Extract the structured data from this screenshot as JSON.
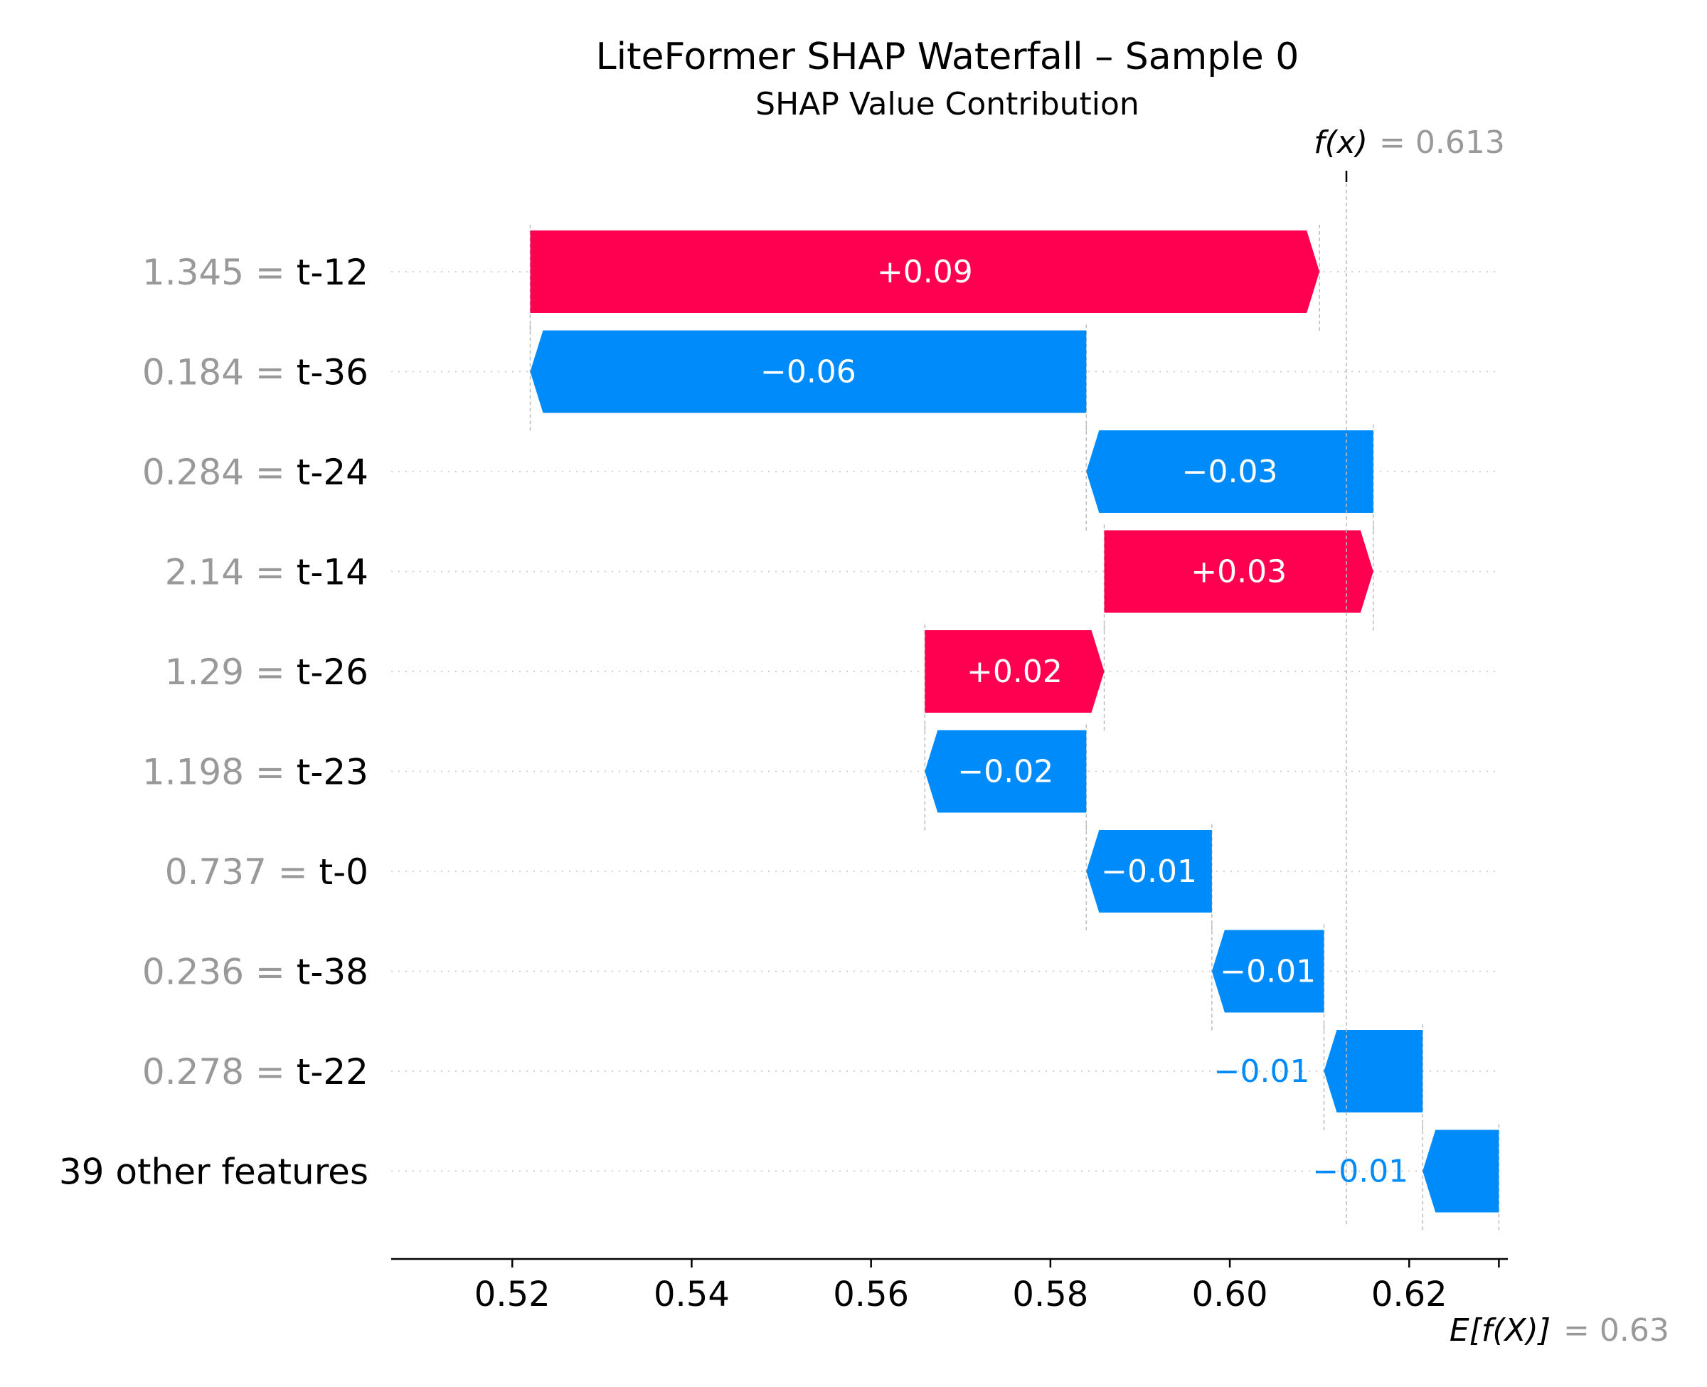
{
  "chart_data": {
    "type": "waterfall",
    "title": "LiteFormer SHAP Waterfall – Sample 0",
    "subtitle": "SHAP Value Contribution",
    "base_value": 0.63,
    "output_value": 0.613,
    "base_label": "E[f(X)]",
    "base_value_label": "= 0.63",
    "output_label": "f(x)",
    "output_value_label": "= 0.613",
    "xlim": [
      0.5065,
      0.631
    ],
    "x_ticks": [
      {
        "value": 0.52,
        "label": "0.52"
      },
      {
        "value": 0.54,
        "label": "0.54"
      },
      {
        "value": 0.56,
        "label": "0.56"
      },
      {
        "value": 0.58,
        "label": "0.58"
      },
      {
        "value": 0.6,
        "label": "0.60"
      },
      {
        "value": 0.62,
        "label": "0.62"
      }
    ],
    "features": [
      {
        "value_text": "1.345",
        "feature": "t-12",
        "shap": 0.088,
        "label": "+0.09"
      },
      {
        "value_text": "0.184",
        "feature": "t-36",
        "shap": -0.062,
        "label": "−0.06"
      },
      {
        "value_text": "0.284",
        "feature": "t-24",
        "shap": -0.032,
        "label": "−0.03"
      },
      {
        "value_text": "2.14",
        "feature": "t-14",
        "shap": 0.03,
        "label": "+0.03"
      },
      {
        "value_text": "1.29",
        "feature": "t-26",
        "shap": 0.02,
        "label": "+0.02"
      },
      {
        "value_text": "1.198",
        "feature": "t-23",
        "shap": -0.018,
        "label": "−0.02"
      },
      {
        "value_text": "0.737",
        "feature": "t-0",
        "shap": -0.014,
        "label": "−0.01"
      },
      {
        "value_text": "0.236",
        "feature": "t-38",
        "shap": -0.0125,
        "label": "−0.01"
      },
      {
        "value_text": "0.278",
        "feature": "t-22",
        "shap": -0.011,
        "label": "−0.01"
      },
      {
        "value_text": "",
        "feature": "39 other features",
        "shap": -0.0085,
        "label": "−0.01"
      }
    ],
    "colors": {
      "positive": "#ff0051",
      "negative": "#008bfb",
      "muted_text": "#999999",
      "guide": "#bbbbbb"
    }
  }
}
